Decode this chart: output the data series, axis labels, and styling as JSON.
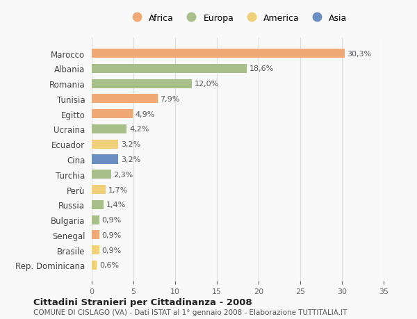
{
  "countries": [
    "Marocco",
    "Albania",
    "Romania",
    "Tunisia",
    "Egitto",
    "Ucraina",
    "Ecuador",
    "Cina",
    "Turchia",
    "Perù",
    "Russia",
    "Bulgaria",
    "Senegal",
    "Brasile",
    "Rep. Dominicana"
  ],
  "values": [
    30.3,
    18.6,
    12.0,
    7.9,
    4.9,
    4.2,
    3.2,
    3.2,
    2.3,
    1.7,
    1.4,
    0.9,
    0.9,
    0.9,
    0.6
  ],
  "labels": [
    "30,3%",
    "18,6%",
    "12,0%",
    "7,9%",
    "4,9%",
    "4,2%",
    "3,2%",
    "3,2%",
    "2,3%",
    "1,7%",
    "1,4%",
    "0,9%",
    "0,9%",
    "0,9%",
    "0,6%"
  ],
  "continents": [
    "Africa",
    "Europa",
    "Europa",
    "Africa",
    "Africa",
    "Europa",
    "America",
    "Asia",
    "Europa",
    "America",
    "Europa",
    "Europa",
    "Africa",
    "America",
    "America"
  ],
  "continent_colors": {
    "Africa": "#F0A875",
    "Europa": "#A8BF8A",
    "America": "#F0D078",
    "Asia": "#6B8EC0"
  },
  "legend_order": [
    "Africa",
    "Europa",
    "America",
    "Asia"
  ],
  "title": "Cittadini Stranieri per Cittadinanza - 2008",
  "subtitle": "COMUNE DI CISLAGO (VA) - Dati ISTAT al 1° gennaio 2008 - Elaborazione TUTTITALIA.IT",
  "xlim": [
    0,
    35
  ],
  "xticks": [
    0,
    5,
    10,
    15,
    20,
    25,
    30,
    35
  ],
  "background_color": "#f9f9f9",
  "grid_color": "#dddddd",
  "bar_height": 0.6
}
